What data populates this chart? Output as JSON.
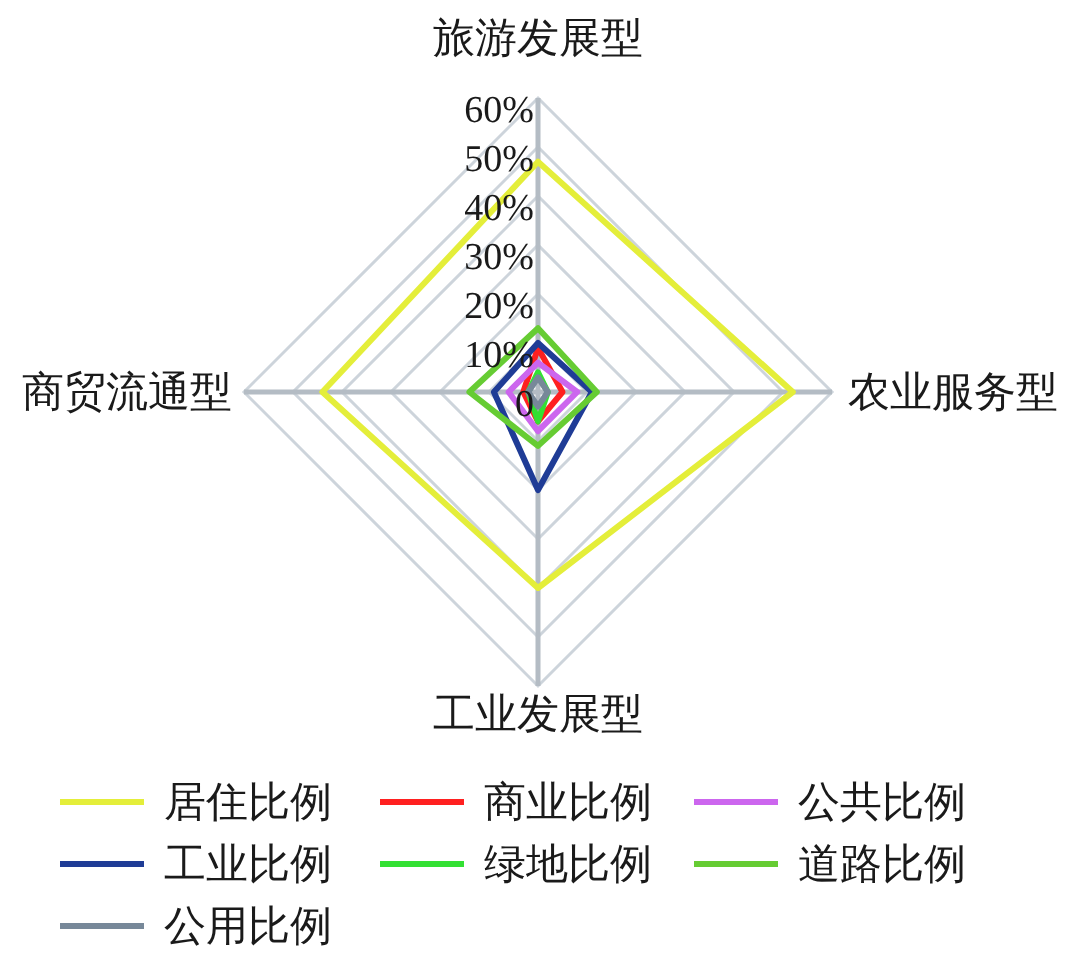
{
  "chart_data": {
    "type": "radar",
    "categories": [
      "旅游发展型",
      "农业服务型",
      "工业发展型",
      "商贸流通型"
    ],
    "ylim": [
      0,
      60
    ],
    "yticks": [
      {
        "value": 0,
        "label": "0"
      },
      {
        "value": 10,
        "label": "10%"
      },
      {
        "value": 20,
        "label": "20%"
      },
      {
        "value": 30,
        "label": "30%"
      },
      {
        "value": 40,
        "label": "40%"
      },
      {
        "value": 50,
        "label": "50%"
      },
      {
        "value": 60,
        "label": "60%"
      }
    ],
    "grid": true,
    "legend": "bottom",
    "series": [
      {
        "name": "居住比例",
        "color": "#e4ee3a",
        "values": [
          47,
          52,
          40,
          44
        ]
      },
      {
        "name": "商业比例",
        "color": "#ff2020",
        "values": [
          9,
          5,
          6,
          3
        ]
      },
      {
        "name": "公共比例",
        "color": "#cc66ee",
        "values": [
          6,
          8,
          8,
          6
        ]
      },
      {
        "name": "工业比例",
        "color": "#1f3c96",
        "values": [
          10,
          11,
          20,
          9
        ]
      },
      {
        "name": "绿地比例",
        "color": "#33e033",
        "values": [
          4,
          2,
          6,
          2
        ]
      },
      {
        "name": "道路比例",
        "color": "#66cc33",
        "values": [
          13,
          12,
          11,
          14
        ]
      },
      {
        "name": "公用比例",
        "color": "#778899",
        "values": [
          3,
          2,
          3,
          2
        ]
      }
    ]
  }
}
